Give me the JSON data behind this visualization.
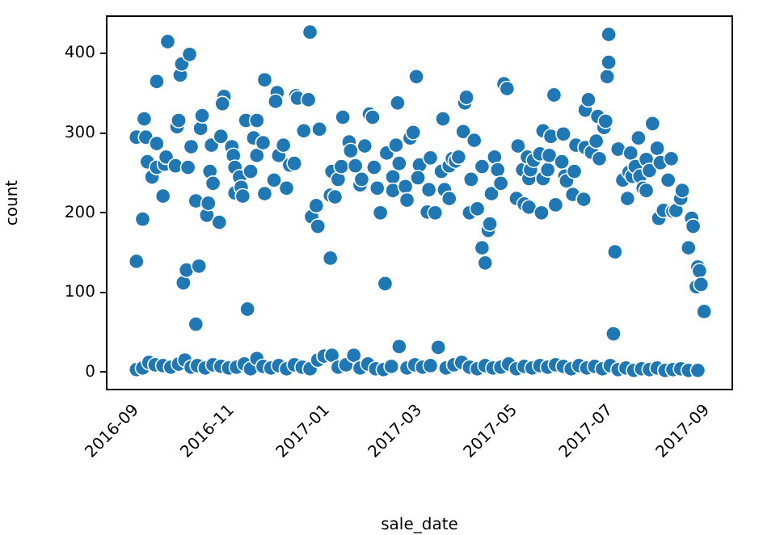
{
  "chart_data": {
    "type": "scatter",
    "xlabel": "sale_date",
    "ylabel": "count",
    "marker": "circle",
    "xlim": [
      "2016-08-13",
      "2017-09-17"
    ],
    "xticks": [
      "2016-09",
      "2016-11",
      "2017-01",
      "2017-03",
      "2017-05",
      "2017-07",
      "2017-09"
    ],
    "ylim": [
      -22,
      447
    ],
    "yticks": [
      0,
      100,
      200,
      300,
      400
    ],
    "series": [
      {
        "color": "#1f77b4",
        "x": [
          "2016-09-01",
          "2016-09-01",
          "2016-09-05",
          "2016-09-06",
          "2016-09-07",
          "2016-09-08",
          "2016-09-11",
          "2016-09-14",
          "2016-09-14",
          "2016-09-14",
          "2016-09-18",
          "2016-09-19",
          "2016-09-21",
          "2016-09-20",
          "2016-09-26",
          "2016-09-27",
          "2016-09-28",
          "2016-09-29",
          "2016-09-30",
          "2016-10-01",
          "2016-10-03",
          "2016-10-04",
          "2016-10-05",
          "2016-10-06",
          "2016-10-09",
          "2016-10-09",
          "2016-10-11",
          "2016-10-12",
          "2016-10-13",
          "2016-10-16",
          "2016-10-17",
          "2016-10-18",
          "2016-10-19",
          "2016-10-20",
          "2016-10-24",
          "2016-10-25",
          "2016-10-27",
          "2016-10-26",
          "2016-11-01",
          "2016-11-02",
          "2016-11-03",
          "2016-11-03",
          "2016-11-06",
          "2016-11-07",
          "2016-11-08",
          "2016-11-10",
          "2016-11-11",
          "2016-11-13",
          "2016-11-15",
          "2016-11-17",
          "2016-11-17",
          "2016-11-21",
          "2016-11-22",
          "2016-11-22",
          "2016-11-28",
          "2016-11-30",
          "2016-11-29",
          "2016-12-01",
          "2016-12-04",
          "2016-12-06",
          "2016-12-08",
          "2016-12-11",
          "2016-12-12",
          "2016-12-13",
          "2016-12-17",
          "2016-12-20",
          "2016-12-21",
          "2016-12-22",
          "2016-12-25",
          "2016-12-27",
          "2016-12-26",
          "2017-01-03",
          "2017-01-03",
          "2017-01-04",
          "2017-01-06",
          "2017-01-08",
          "2017-01-10",
          "2017-01-11",
          "2017-01-15",
          "2017-01-16",
          "2017-01-19",
          "2017-01-22",
          "2017-01-23",
          "2017-01-25",
          "2017-01-28",
          "2017-01-30",
          "2017-01-31",
          "2017-02-02",
          "2017-02-04",
          "2017-02-07",
          "2017-02-08",
          "2017-02-12",
          "2017-02-12",
          "2017-02-15",
          "2017-02-14",
          "2017-02-16",
          "2017-02-20",
          "2017-02-21",
          "2017-02-23",
          "2017-02-25",
          "2017-02-27",
          "2017-03-01",
          "2017-02-28",
          "2017-03-06",
          "2017-03-07",
          "2017-03-08",
          "2017-03-11",
          "2017-03-16",
          "2017-03-15",
          "2017-03-17",
          "2017-03-20",
          "2017-03-20",
          "2017-03-22",
          "2017-03-24",
          "2017-03-26",
          "2017-03-29",
          "2017-03-30",
          "2017-03-31",
          "2017-04-02",
          "2017-04-03",
          "2017-04-05",
          "2017-04-07",
          "2017-04-10",
          "2017-04-12",
          "2017-04-10",
          "2017-04-14",
          "2017-04-15",
          "2017-04-16",
          "2017-04-18",
          "2017-04-20",
          "2017-04-22",
          "2017-04-24",
          "2017-04-26",
          "2017-05-02",
          "2017-05-03",
          "2017-05-06",
          "2017-05-07",
          "2017-05-09",
          "2017-05-10",
          "2017-05-10",
          "2017-05-11",
          "2017-05-13",
          "2017-05-17",
          "2017-05-18",
          "2017-05-19",
          "2017-05-19",
          "2017-05-22",
          "2017-05-23",
          "2017-05-24",
          "2017-05-26",
          "2017-05-27",
          "2017-05-31",
          "2017-06-01",
          "2017-06-02",
          "2017-06-03",
          "2017-06-07",
          "2017-06-08",
          "2017-06-09",
          "2017-06-14",
          "2017-06-15",
          "2017-06-15",
          "2017-06-17",
          "2017-06-19",
          "2017-06-22",
          "2017-06-23",
          "2017-06-24",
          "2017-06-27",
          "2017-06-28",
          "2017-06-29",
          "2017-06-30",
          "2017-06-30",
          "2017-07-04",
          "2017-07-03",
          "2017-07-06",
          "2017-07-09",
          "2017-07-12",
          "2017-07-13",
          "2017-07-14",
          "2017-07-15",
          "2017-07-17",
          "2017-07-19",
          "2017-07-20",
          "2017-07-22",
          "2017-07-24",
          "2017-07-24",
          "2017-07-26",
          "2017-07-28",
          "2017-07-31",
          "2017-08-01",
          "2017-08-02",
          "2017-08-04",
          "2017-08-07",
          "2017-08-09",
          "2017-08-10",
          "2017-08-12",
          "2017-08-15",
          "2017-08-16",
          "2017-08-20",
          "2017-08-22",
          "2017-08-23",
          "2017-08-26",
          "2017-08-27",
          "2017-08-25",
          "2017-08-28",
          "2017-08-30",
          "2016-09-01",
          "2016-09-05",
          "2016-09-09",
          "2016-09-13",
          "2016-09-18",
          "2016-09-23",
          "2016-09-28",
          "2016-10-02",
          "2016-10-06",
          "2016-10-10",
          "2016-10-15",
          "2016-10-20",
          "2016-10-25",
          "2016-10-30",
          "2016-11-04",
          "2016-11-09",
          "2016-11-13",
          "2016-11-17",
          "2016-11-21",
          "2016-11-26",
          "2016-12-01",
          "2016-12-06",
          "2016-12-11",
          "2016-12-16",
          "2016-12-21",
          "2016-12-26",
          "2016-12-30",
          "2017-01-04",
          "2017-01-08",
          "2017-01-13",
          "2017-01-18",
          "2017-01-22",
          "2017-01-27",
          "2017-02-01",
          "2017-02-06",
          "2017-02-11",
          "2017-02-16",
          "2017-02-21",
          "2017-02-26",
          "2017-03-03",
          "2017-03-08",
          "2017-03-13",
          "2017-03-18",
          "2017-03-23",
          "2017-03-28",
          "2017-04-02",
          "2017-04-07",
          "2017-04-12",
          "2017-04-17",
          "2017-04-22",
          "2017-04-27",
          "2017-05-02",
          "2017-05-07",
          "2017-05-12",
          "2017-05-17",
          "2017-05-22",
          "2017-05-27",
          "2017-06-01",
          "2017-06-06",
          "2017-06-11",
          "2017-06-16",
          "2017-06-21",
          "2017-06-26",
          "2017-07-01",
          "2017-07-06",
          "2017-07-11",
          "2017-07-16",
          "2017-07-21",
          "2017-07-26",
          "2017-07-31",
          "2017-08-05",
          "2017-08-10",
          "2017-08-15",
          "2017-08-20",
          "2017-08-26"
        ],
        "values": [
          139,
          295,
          192,
          318,
          295,
          264,
          245,
          287,
          365,
          257,
          221,
          261,
          415,
          270,
          259,
          308,
          316,
          373,
          387,
          112,
          128,
          257,
          399,
          283,
          60,
          215,
          133,
          306,
          322,
          197,
          212,
          252,
          285,
          237,
          188,
          296,
          346,
          337,
          283,
          272,
          225,
          257,
          245,
          232,
          221,
          316,
          79,
          252,
          294,
          316,
          272,
          288,
          367,
          224,
          241,
          351,
          340,
          272,
          285,
          231,
          260,
          262,
          347,
          344,
          303,
          342,
          427,
          195,
          209,
          305,
          183,
          143,
          222,
          252,
          220,
          242,
          258,
          320,
          289,
          278,
          259,
          235,
          242,
          284,
          324,
          320,
          257,
          231,
          200,
          111,
          275,
          245,
          228,
          338,
          285,
          262,
          233,
          216,
          294,
          301,
          371,
          260,
          244,
          201,
          229,
          269,
          200,
          318,
          252,
          229,
          218,
          259,
          268,
          265,
          270,
          302,
          338,
          345,
          200,
          242,
          291,
          205,
          258,
          137,
          156,
          178,
          186,
          224,
          270,
          254,
          237,
          362,
          356,
          218,
          284,
          254,
          211,
          270,
          243,
          207,
          254,
          266,
          274,
          200,
          303,
          243,
          254,
          272,
          296,
          348,
          210,
          264,
          299,
          246,
          240,
          223,
          252,
          285,
          217,
          282,
          329,
          342,
          276,
          290,
          321,
          268,
          307,
          315,
          371,
          389,
          424,
          151,
          48,
          280,
          241,
          218,
          251,
          275,
          246,
          258,
          294,
          246,
          231,
          228,
          267,
          253,
          312,
          281,
          193,
          263,
          203,
          241,
          268,
          202,
          203,
          218,
          228,
          156,
          193,
          183,
          132,
          127,
          107,
          110,
          76,
          3,
          5,
          12,
          9,
          8,
          6,
          10,
          15,
          6,
          8,
          5,
          9,
          7,
          5,
          6,
          10,
          4,
          17,
          7,
          5,
          8,
          4,
          9,
          6,
          4,
          15,
          20,
          21,
          6,
          9,
          21,
          5,
          10,
          4,
          3,
          7,
          32,
          5,
          9,
          6,
          8,
          31,
          5,
          9,
          12,
          6,
          4,
          8,
          5,
          6,
          10,
          4,
          7,
          5,
          8,
          6,
          9,
          7,
          4,
          8,
          5,
          7,
          4,
          8,
          3,
          5,
          2,
          4,
          3,
          5,
          2,
          3,
          4,
          2,
          2
        ]
      }
    ]
  }
}
